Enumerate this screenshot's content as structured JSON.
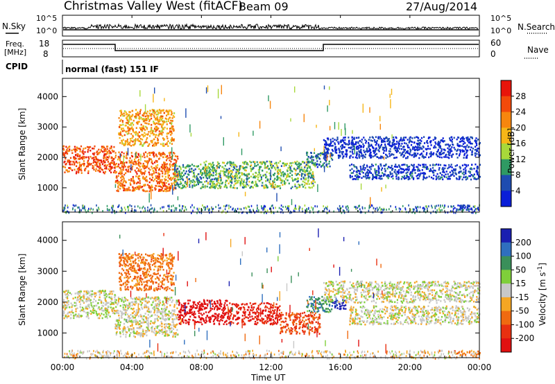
{
  "header": {
    "station": "Christmas Valley West (fitACF)",
    "beam": "Beam 09",
    "date": "27/Aug/2014"
  },
  "summary_panels": {
    "nsky": {
      "label": "N.Sky",
      "ticks": [
        "10^5",
        "10^0"
      ],
      "right_ticks": [
        "10^5",
        "10^0"
      ],
      "right_label": "N.Search"
    },
    "freq": {
      "label_line1": "Freq.",
      "label_line2": "[MHz]",
      "ticks": [
        "18",
        "8"
      ],
      "right_ticks": [
        "60",
        "0"
      ],
      "right_label": "Nave"
    },
    "cpid": {
      "label": "CPID",
      "mode": "normal (fast) 151 IF"
    }
  },
  "power_panel": {
    "ylabel": "Slant Range [km]",
    "yticks": [
      "4000",
      "3000",
      "2000",
      "1000"
    ],
    "colorbar": {
      "label": "Power [dB]",
      "ticks": [
        "28",
        "24",
        "20",
        "16",
        "12",
        "8",
        "4"
      ],
      "colors": [
        "#e8150a",
        "#f24a0a",
        "#f7860e",
        "#f6b617",
        "#a8d83a",
        "#2f9a63",
        "#1e4cb0",
        "#0a1ed8"
      ]
    }
  },
  "velocity_panel": {
    "ylabel": "Slant Range [km]",
    "yticks": [
      "4000",
      "3000",
      "2000",
      "1000"
    ],
    "colorbar": {
      "label": "Velocity [m s^-1]",
      "ticks": [
        "200",
        "100",
        "50",
        "15",
        "-15",
        "-50",
        "-100",
        "-200"
      ],
      "colors": [
        "#1a1fb0",
        "#2f6fbf",
        "#3a8f5a",
        "#7fcf3a",
        "#c8c8c8",
        "#f5a623",
        "#f06a10",
        "#e83010",
        "#e01010"
      ]
    }
  },
  "xaxis": {
    "label": "Time UT",
    "ticks": [
      "00:00",
      "04:00",
      "08:00",
      "12:00",
      "16:00",
      "20:00",
      "00:00"
    ]
  },
  "chart_data": [
    {
      "type": "heatmap",
      "title": "Power",
      "xlabel": "Time UT",
      "ylabel": "Slant Range [km]",
      "xlim": [
        0,
        24
      ],
      "ylim": [
        200,
        4600
      ],
      "colorbar_label": "Power [dB]",
      "colorbar_range": [
        0,
        32
      ],
      "features": [
        {
          "t": [
            0.0,
            3.0
          ],
          "range": [
            1500,
            2400
          ],
          "value": 28
        },
        {
          "t": [
            3.0,
            6.6
          ],
          "range": [
            900,
            2200
          ],
          "value": 26
        },
        {
          "t": [
            3.2,
            6.4
          ],
          "range": [
            2400,
            3600
          ],
          "value": 22
        },
        {
          "t": [
            6.4,
            8.0
          ],
          "range": [
            1000,
            1800
          ],
          "value": 12
        },
        {
          "t": [
            8.0,
            14.5
          ],
          "range": [
            1000,
            1900
          ],
          "value": 14
        },
        {
          "t": [
            14.0,
            15.5
          ],
          "range": [
            1700,
            2200
          ],
          "value": 10
        },
        {
          "t": [
            16.5,
            24.0
          ],
          "range": [
            1300,
            1800
          ],
          "value": 6
        },
        {
          "t": [
            15.0,
            24.0
          ],
          "range": [
            2000,
            2700
          ],
          "value": 5
        },
        {
          "t": [
            22.5,
            24.0
          ],
          "range": [
            300,
            450
          ],
          "value": 4
        }
      ]
    },
    {
      "type": "heatmap",
      "title": "Velocity",
      "xlabel": "Time UT",
      "ylabel": "Slant Range [km]",
      "xlim": [
        0,
        24
      ],
      "ylim": [
        200,
        4600
      ],
      "colorbar_label": "Velocity [m s^-1]",
      "colorbar_range": [
        -250,
        250
      ],
      "features": [
        {
          "t": [
            0.0,
            3.0
          ],
          "range": [
            1500,
            2400
          ],
          "value": 0
        },
        {
          "t": [
            3.0,
            6.6
          ],
          "range": [
            900,
            2200
          ],
          "value": 0
        },
        {
          "t": [
            3.2,
            6.4
          ],
          "range": [
            2400,
            3600
          ],
          "value": -50
        },
        {
          "t": [
            6.6,
            9.5
          ],
          "range": [
            1300,
            2100
          ],
          "value": -200
        },
        {
          "t": [
            9.5,
            12.5
          ],
          "range": [
            1300,
            2000
          ],
          "value": -150
        },
        {
          "t": [
            12.5,
            14.8
          ],
          "range": [
            1000,
            1700
          ],
          "value": -80
        },
        {
          "t": [
            14.0,
            15.5
          ],
          "range": [
            1700,
            2200
          ],
          "value": 60
        },
        {
          "t": [
            15.5,
            16.3
          ],
          "range": [
            1800,
            2100
          ],
          "value": 220
        },
        {
          "t": [
            16.5,
            24.0
          ],
          "range": [
            1300,
            1900
          ],
          "value": 0
        },
        {
          "t": [
            15.0,
            24.0
          ],
          "range": [
            2000,
            2700
          ],
          "value": 0
        },
        {
          "t": [
            22.5,
            24.0
          ],
          "range": [
            300,
            450
          ],
          "value": -50
        }
      ]
    }
  ]
}
